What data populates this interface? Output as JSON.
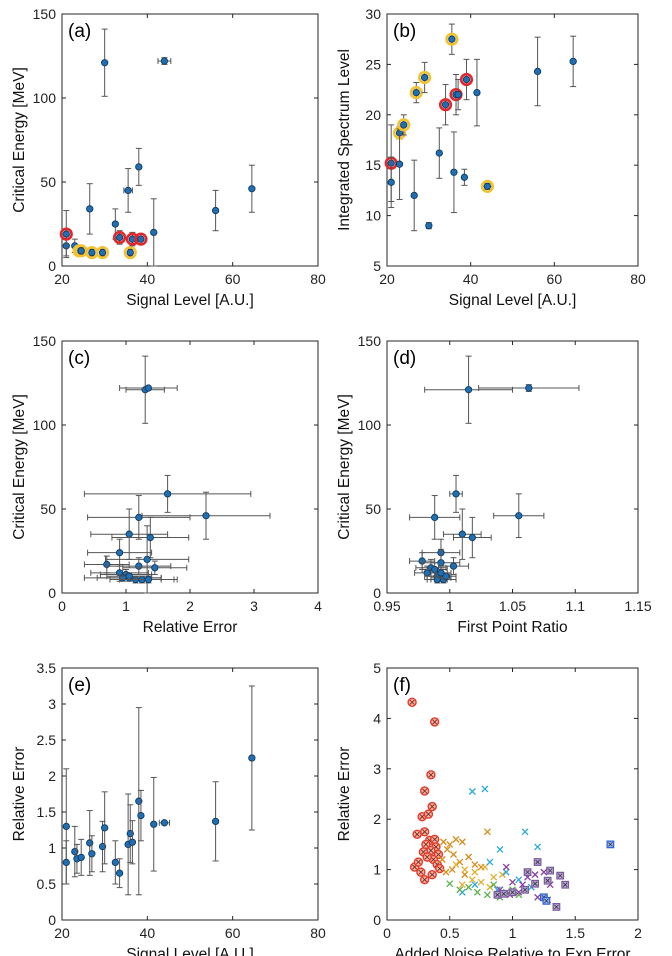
{
  "chart_data": [
    {
      "id": "a",
      "panel_label": "(a)",
      "type": "scatter",
      "xlabel": "Signal Level [A.U.]",
      "ylabel": "Critical Energy [MeV]",
      "xlim": [
        20,
        80
      ],
      "ylim": [
        0,
        150
      ],
      "xticks": [
        "20",
        "40",
        "60",
        "80"
      ],
      "yticks": [
        "0",
        "50",
        "100",
        "150"
      ],
      "grid": false,
      "points": [
        {
          "x": 21,
          "y": 12,
          "err": 6
        },
        {
          "x": 21,
          "y": 19,
          "err": 14,
          "ring": "#e0282c"
        },
        {
          "x": 23,
          "y": 12,
          "err": 4
        },
        {
          "x": 24,
          "y": 9,
          "err": 2,
          "ring": "#f2c230"
        },
        {
          "x": 24.5,
          "y": 9,
          "err": 2,
          "ring": "#f2c230"
        },
        {
          "x": 27,
          "y": 8,
          "err": 2,
          "ring": "#f2c230"
        },
        {
          "x": 29.5,
          "y": 8,
          "err": 2,
          "ring": "#f2c230"
        },
        {
          "x": 26.5,
          "y": 34,
          "err": 15
        },
        {
          "x": 30,
          "y": 121,
          "err": 20
        },
        {
          "x": 32.5,
          "y": 25,
          "err": 9
        },
        {
          "x": 33.5,
          "y": 17,
          "err": 4,
          "ring": "#e0282c"
        },
        {
          "x": 35.5,
          "y": 45,
          "err": 13,
          "xerr": 1
        },
        {
          "x": 36,
          "y": 8,
          "err": 2,
          "ring": "#f2c230"
        },
        {
          "x": 36.5,
          "y": 16,
          "err": 4,
          "ring": "#e0282c"
        },
        {
          "x": 38.5,
          "y": 16,
          "err": 3,
          "ring": "#e0282c"
        },
        {
          "x": 38,
          "y": 59,
          "err": 11
        },
        {
          "x": 41.5,
          "y": 20,
          "err": 20
        },
        {
          "x": 44,
          "y": 122,
          "err": 2,
          "xerr": 1.5
        },
        {
          "x": 56,
          "y": 33,
          "err": 12
        },
        {
          "x": 64.5,
          "y": 46,
          "err": 14
        }
      ]
    },
    {
      "id": "b",
      "panel_label": "(b)",
      "type": "scatter",
      "xlabel": "Signal Level [A.U.]",
      "ylabel": "Integrated Spectrum Level",
      "xlim": [
        20,
        80
      ],
      "ylim": [
        5,
        30
      ],
      "xticks": [
        "20",
        "40",
        "60",
        "80"
      ],
      "yticks": [
        "5",
        "10",
        "15",
        "20",
        "25",
        "30"
      ],
      "grid": false,
      "points": [
        {
          "x": 21,
          "y": 15.2,
          "err": 3.8,
          "ring": "#e0282c"
        },
        {
          "x": 21,
          "y": 13.3,
          "err": 2.5
        },
        {
          "x": 23,
          "y": 18.2,
          "err": 0.6,
          "ring": "#f2c230"
        },
        {
          "x": 23,
          "y": 15.1,
          "err": 3.5
        },
        {
          "x": 24,
          "y": 19,
          "err": 1,
          "ring": "#f2c230"
        },
        {
          "x": 26.5,
          "y": 12,
          "err": 3.5
        },
        {
          "x": 27,
          "y": 22.2,
          "err": 1,
          "ring": "#f2c230"
        },
        {
          "x": 29,
          "y": 23.7,
          "err": 1.5,
          "ring": "#f2c230"
        },
        {
          "x": 30,
          "y": 9,
          "err": 0.3
        },
        {
          "x": 32.5,
          "y": 16.2,
          "err": 2.5
        },
        {
          "x": 34,
          "y": 21,
          "err": 2,
          "ring": "#e0282c"
        },
        {
          "x": 35.5,
          "y": 27.5,
          "err": 1.5,
          "ring": "#f2c230"
        },
        {
          "x": 36,
          "y": 14.3,
          "err": 4
        },
        {
          "x": 36.5,
          "y": 22,
          "err": 2,
          "ring": "#e0282c"
        },
        {
          "x": 37,
          "y": 22,
          "err": 1.5
        },
        {
          "x": 38.5,
          "y": 13.8,
          "err": 0.8
        },
        {
          "x": 39,
          "y": 23.5,
          "err": 2,
          "ring": "#e0282c"
        },
        {
          "x": 41.5,
          "y": 22.2,
          "err": 3.3
        },
        {
          "x": 44,
          "y": 12.9,
          "err": 0.3,
          "xerr": 1.3,
          "ring": "#f2c230"
        },
        {
          "x": 56,
          "y": 24.3,
          "err": 3.4
        },
        {
          "x": 64.5,
          "y": 25.3,
          "err": 2.5
        }
      ]
    },
    {
      "id": "c",
      "panel_label": "(c)",
      "type": "scatter",
      "xlabel": "Relative Error",
      "ylabel": "Critical Energy [MeV]",
      "xlim": [
        0,
        4
      ],
      "ylim": [
        0,
        150
      ],
      "xticks": [
        "0",
        "1",
        "2",
        "3",
        "4"
      ],
      "yticks": [
        "0",
        "50",
        "100",
        "150"
      ],
      "grid": false,
      "points": [
        {
          "x": 1.3,
          "y": 121,
          "err": 20,
          "xerr": 0.3
        },
        {
          "x": 1.35,
          "y": 122,
          "err": 1,
          "xerr": 0.45
        },
        {
          "x": 1.65,
          "y": 59,
          "err": 11,
          "xerr": 1.3
        },
        {
          "x": 2.25,
          "y": 46,
          "err": 14,
          "xerr": 1
        },
        {
          "x": 1.2,
          "y": 45,
          "err": 13,
          "xerr": 0.8
        },
        {
          "x": 1.05,
          "y": 35,
          "err": 15,
          "xerr": 0.6
        },
        {
          "x": 1.38,
          "y": 33,
          "err": 12,
          "xerr": 0.6
        },
        {
          "x": 0.9,
          "y": 24,
          "err": 8,
          "xerr": 0.5
        },
        {
          "x": 1.33,
          "y": 20,
          "err": 20,
          "xerr": 0.65
        },
        {
          "x": 0.7,
          "y": 17,
          "err": 5,
          "xerr": 0.35
        },
        {
          "x": 1.2,
          "y": 16,
          "err": 5,
          "xerr": 0.5
        },
        {
          "x": 1.45,
          "y": 15,
          "err": 4,
          "xerr": 0.5
        },
        {
          "x": 0.9,
          "y": 12,
          "err": 5,
          "xerr": 0.45
        },
        {
          "x": 1.0,
          "y": 11,
          "err": 3,
          "xerr": 0.4
        },
        {
          "x": 1.05,
          "y": 9,
          "err": 2,
          "xerr": 0.5
        },
        {
          "x": 1.15,
          "y": 8,
          "err": 2,
          "xerr": 0.4
        },
        {
          "x": 0.95,
          "y": 9,
          "err": 2,
          "xerr": 0.6
        },
        {
          "x": 1.25,
          "y": 8,
          "err": 2,
          "xerr": 0.5
        },
        {
          "x": 1.05,
          "y": 10,
          "err": 2,
          "xerr": 0.35
        },
        {
          "x": 1.35,
          "y": 8,
          "err": 2,
          "xerr": 0.45
        }
      ]
    },
    {
      "id": "d",
      "panel_label": "(d)",
      "type": "scatter",
      "xlabel": "First Point Ratio",
      "ylabel": "Critical Energy [MeV]",
      "xlim": [
        0.95,
        1.15
      ],
      "ylim": [
        0,
        150
      ],
      "xticks": [
        "0.95",
        "1",
        "1.05",
        "1.1",
        "1.15"
      ],
      "yticks": [
        "0",
        "50",
        "100",
        "150"
      ],
      "grid": false,
      "points": [
        {
          "x": 1.015,
          "y": 121,
          "err": 20,
          "xerr": 0.035
        },
        {
          "x": 1.063,
          "y": 122,
          "err": 2,
          "xerr": 0.04
        },
        {
          "x": 1.005,
          "y": 59,
          "err": 11,
          "xerr": 0.005
        },
        {
          "x": 1.055,
          "y": 46,
          "err": 13,
          "xerr": 0.02
        },
        {
          "x": 0.988,
          "y": 45,
          "err": 13,
          "xerr": 0.02
        },
        {
          "x": 1.01,
          "y": 35,
          "err": 15,
          "xerr": 0.015
        },
        {
          "x": 1.018,
          "y": 33,
          "err": 12,
          "xerr": 0.015
        },
        {
          "x": 0.993,
          "y": 24,
          "err": 8,
          "xerr": 0.015
        },
        {
          "x": 0.978,
          "y": 19,
          "err": 5,
          "xerr": 0.01
        },
        {
          "x": 0.985,
          "y": 15,
          "err": 5,
          "xerr": 0.012
        },
        {
          "x": 0.993,
          "y": 18,
          "err": 8,
          "xerr": 0.015
        },
        {
          "x": 1.003,
          "y": 16,
          "err": 5,
          "xerr": 0.012
        },
        {
          "x": 0.982,
          "y": 12,
          "err": 4,
          "xerr": 0.01
        },
        {
          "x": 0.99,
          "y": 10,
          "err": 3,
          "xerr": 0.01
        },
        {
          "x": 0.993,
          "y": 9,
          "err": 2,
          "xerr": 0.008
        },
        {
          "x": 0.995,
          "y": 8,
          "err": 2,
          "xerr": 0.01
        },
        {
          "x": 0.99,
          "y": 8,
          "err": 2,
          "xerr": 0.008
        },
        {
          "x": 0.997,
          "y": 10,
          "err": 2,
          "xerr": 0.008
        },
        {
          "x": 0.988,
          "y": 14,
          "err": 4,
          "xerr": 0.01
        },
        {
          "x": 0.993,
          "y": 12,
          "err": 3,
          "xerr": 0.008
        }
      ]
    },
    {
      "id": "e",
      "panel_label": "(e)",
      "type": "scatter",
      "xlabel": "Signal Level [A.U.]",
      "ylabel": "Relative Error",
      "xlim": [
        20,
        80
      ],
      "ylim": [
        0,
        3.5
      ],
      "xticks": [
        "20",
        "40",
        "60",
        "80"
      ],
      "yticks": [
        "0",
        "0.5",
        "1",
        "1.5",
        "2",
        "2.5",
        "3",
        "3.5"
      ],
      "grid": false,
      "points": [
        {
          "x": 21,
          "y": 1.3,
          "err": 0.8
        },
        {
          "x": 21,
          "y": 0.8,
          "err": 0.3
        },
        {
          "x": 23,
          "y": 0.95,
          "err": 0.35
        },
        {
          "x": 23.5,
          "y": 0.85,
          "err": 0.2
        },
        {
          "x": 24.5,
          "y": 0.87,
          "err": 0.25
        },
        {
          "x": 26.5,
          "y": 1.07,
          "err": 0.45
        },
        {
          "x": 27,
          "y": 0.92,
          "err": 0.25
        },
        {
          "x": 29.5,
          "y": 1.02,
          "err": 0.35
        },
        {
          "x": 30,
          "y": 1.28,
          "err": 0.5
        },
        {
          "x": 32.5,
          "y": 0.8,
          "err": 0.3
        },
        {
          "x": 33.5,
          "y": 0.65,
          "err": 0.2
        },
        {
          "x": 35.5,
          "y": 1.05,
          "err": 0.7
        },
        {
          "x": 36,
          "y": 1.2,
          "err": 0.4
        },
        {
          "x": 36.5,
          "y": 1.08,
          "err": 0.3
        },
        {
          "x": 38,
          "y": 1.65,
          "err": 1.3
        },
        {
          "x": 38.5,
          "y": 1.45,
          "err": 0.35
        },
        {
          "x": 41.5,
          "y": 1.33,
          "err": 0.65
        },
        {
          "x": 44,
          "y": 1.35,
          "err": 0.02,
          "xerr": 1.2
        },
        {
          "x": 56,
          "y": 1.37,
          "err": 0.55
        },
        {
          "x": 64.5,
          "y": 2.25,
          "err": 1
        }
      ]
    },
    {
      "id": "f",
      "panel_label": "(f)",
      "type": "scatter",
      "xlabel": "Added Noise Relative to Exp Error",
      "ylabel": "Relative Error",
      "xlim": [
        0,
        2
      ],
      "ylim": [
        0,
        5
      ],
      "xticks": [
        "0",
        "0.5",
        "1",
        "1.5",
        "2"
      ],
      "yticks": [
        "0",
        "1",
        "2",
        "3",
        "4",
        "5"
      ],
      "grid": false,
      "series": [
        {
          "marker": "circle-x",
          "color": "#e23b2e",
          "face": "#ffb29a",
          "x": [
            0.2,
            0.38,
            0.3,
            0.35,
            0.28,
            0.33,
            0.36,
            0.3,
            0.34,
            0.38,
            0.24,
            0.31,
            0.39,
            0.35,
            0.41,
            0.29,
            0.37,
            0.22,
            0.32,
            0.4,
            0.27,
            0.36,
            0.3,
            0.42,
            0.25
          ],
          "y": [
            4.32,
            3.93,
            2.56,
            2.88,
            2.05,
            2.1,
            2.25,
            1.75,
            1.58,
            1.6,
            1.7,
            1.5,
            1.45,
            1.38,
            1.3,
            1.35,
            1.2,
            1.05,
            1.25,
            1.1,
            0.95,
            0.9,
            0.8,
            1.02,
            1.15
          ]
        },
        {
          "marker": "x",
          "color": "#d98c1c",
          "x": [
            0.45,
            0.5,
            0.55,
            0.6,
            0.48,
            0.53,
            0.58,
            0.65,
            0.7,
            0.52,
            0.47,
            0.62,
            0.75,
            0.8,
            0.44
          ],
          "y": [
            1.55,
            1.5,
            1.6,
            1.55,
            1.4,
            1.3,
            1.15,
            1.25,
            1.1,
            1.0,
            0.95,
            0.9,
            1.05,
            1.75,
            1.2
          ]
        },
        {
          "marker": "x",
          "color": "#e0b030",
          "x": [
            0.55,
            0.62,
            0.7,
            0.78,
            0.85,
            0.68,
            0.75,
            0.92,
            0.6,
            0.82
          ],
          "y": [
            1.1,
            1.0,
            0.95,
            1.05,
            0.85,
            0.8,
            0.75,
            0.9,
            0.7,
            0.65
          ]
        },
        {
          "marker": "x",
          "color": "#2aa8e0",
          "x": [
            0.68,
            0.78,
            0.9,
            1.1,
            1.2,
            0.82,
            0.95,
            1.05,
            0.7,
            0.88,
            1.15,
            0.6
          ],
          "y": [
            2.55,
            2.6,
            1.4,
            1.75,
            1.45,
            1.15,
            0.95,
            0.8,
            0.7,
            0.6,
            0.65,
            0.55
          ]
        },
        {
          "marker": "x",
          "color": "#5bb04a",
          "x": [
            0.5,
            0.58,
            0.65,
            0.72,
            0.8,
            0.9,
            1.0,
            1.05,
            0.85,
            0.95
          ],
          "y": [
            0.72,
            0.6,
            0.65,
            0.55,
            0.5,
            0.45,
            0.6,
            0.5,
            0.7,
            0.55
          ]
        },
        {
          "marker": "x",
          "color": "#8a3fa3",
          "x": [
            0.95,
            1.0,
            1.08,
            1.12,
            1.18,
            1.25,
            1.3,
            1.05,
            0.98,
            0.9,
            1.2,
            1.28
          ],
          "y": [
            1.05,
            0.75,
            0.7,
            0.85,
            0.9,
            0.95,
            0.7,
            0.55,
            0.5,
            0.6,
            0.45,
            0.4
          ]
        },
        {
          "marker": "square-x",
          "color": "#7a5a9e",
          "face": "#b8a7d6",
          "x": [
            0.88,
            1.0,
            1.12,
            1.2,
            1.3,
            1.38,
            1.28,
            1.18,
            1.1,
            0.93,
            1.35,
            1.42
          ],
          "y": [
            0.5,
            0.55,
            0.95,
            1.15,
            0.98,
            0.88,
            0.78,
            0.72,
            0.6,
            0.52,
            0.26,
            0.7
          ]
        },
        {
          "marker": "square-x",
          "color": "#2e5fd8",
          "face": "#8fb4f0",
          "x": [
            1.25,
            1.27,
            1.78
          ],
          "y": [
            0.45,
            0.38,
            1.5
          ]
        }
      ]
    }
  ]
}
